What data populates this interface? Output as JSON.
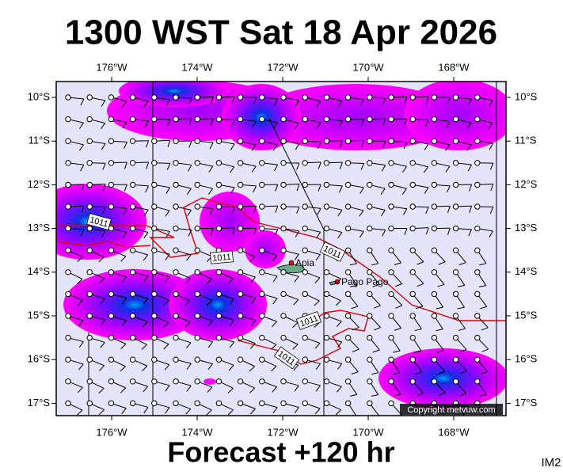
{
  "title": "1300 WST Sat 18 Apr 2026",
  "footer": "Forecast +120 hr",
  "corner_tag": "IM2",
  "map": {
    "x_labels": [
      "176°W",
      "174°W",
      "172°W",
      "170°W",
      "168°W"
    ],
    "y_labels": [
      "10°S",
      "11°S",
      "12°S",
      "13°S",
      "14°S",
      "15°S",
      "16°S",
      "17°S"
    ],
    "places": [
      "Apia",
      "Pago Pago"
    ],
    "contour_labels": [
      "1011",
      "1011",
      "1011",
      "1011",
      "1011"
    ],
    "copyright": "Copyright metvuw.com"
  }
}
